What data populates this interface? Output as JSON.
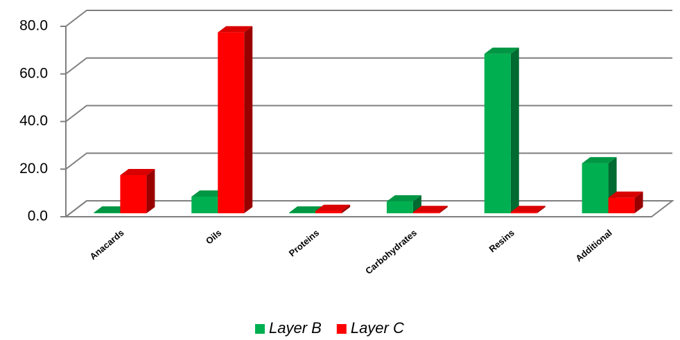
{
  "chart_data": {
    "type": "bar3d",
    "categories": [
      "Anacards",
      "Oils",
      "Proteins",
      "Carbohydrates",
      "Resins",
      "Additional"
    ],
    "series": [
      {
        "name": "Layer B",
        "color": "#00b050",
        "values": [
          0.3,
          7,
          0.3,
          5,
          67,
          21
        ]
      },
      {
        "name": "Layer C",
        "color": "#ff0000",
        "values": [
          16,
          76,
          1,
          0.5,
          0.5,
          6.5
        ]
      }
    ],
    "ylim": [
      0,
      80
    ],
    "yticks": [
      {
        "value": 0,
        "label": "0.0"
      },
      {
        "value": 20,
        "label": "20.0"
      },
      {
        "value": 40,
        "label": "40.0"
      },
      {
        "value": 60,
        "label": "60.0"
      },
      {
        "value": 80,
        "label": "80.0"
      }
    ],
    "grid": true,
    "legend": "bottom"
  }
}
